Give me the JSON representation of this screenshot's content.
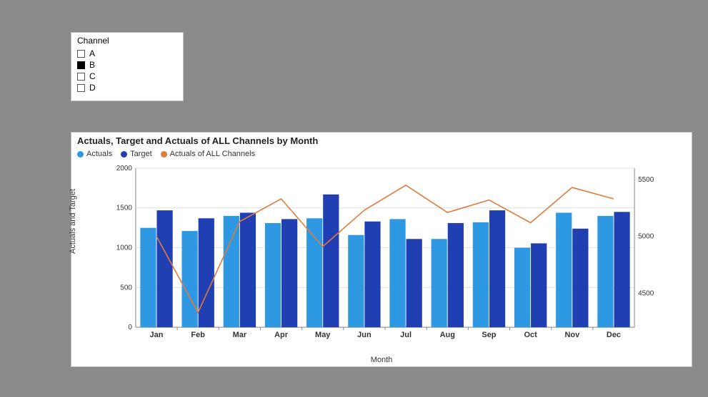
{
  "filter": {
    "title": "Channel",
    "items": [
      {
        "label": "A",
        "selected": false
      },
      {
        "label": "B",
        "selected": true
      },
      {
        "label": "C",
        "selected": false
      },
      {
        "label": "D",
        "selected": false
      }
    ]
  },
  "chart": {
    "title": "Actuals, Target and Actuals of ALL Channels by Month",
    "legend": [
      {
        "label": "Actuals",
        "color": "#2f98e3"
      },
      {
        "label": "Target",
        "color": "#1f3fb3"
      },
      {
        "label": "Actuals of ALL Channels",
        "color": "#e07b3c"
      }
    ],
    "x_label": "Month",
    "y_label": "Actuals and Target",
    "categories": [
      "Jan",
      "Feb",
      "Mar",
      "Apr",
      "May",
      "Jun",
      "Jul",
      "Aug",
      "Sep",
      "Oct",
      "Nov",
      "Dec"
    ],
    "y_left": {
      "min": 0,
      "max": 2000,
      "step": 500
    },
    "y_right": {
      "min": 4200,
      "max": 5600,
      "ticks": [
        4500,
        5000,
        5500
      ]
    },
    "series": {
      "actuals": {
        "type": "bar",
        "color": "#2f98e3",
        "values": [
          1250,
          1210,
          1400,
          1310,
          1370,
          1160,
          1360,
          1110,
          1320,
          1000,
          1440,
          1400
        ]
      },
      "target": {
        "type": "bar",
        "color": "#1f3fb3",
        "values": [
          1470,
          1370,
          1440,
          1360,
          1670,
          1330,
          1110,
          1310,
          1470,
          1055,
          1240,
          1450
        ]
      },
      "all_channels": {
        "type": "line",
        "color": "#e07b3c",
        "values": [
          5000,
          4330,
          5130,
          5330,
          4910,
          5230,
          5450,
          5210,
          5320,
          5120,
          5430,
          5330
        ]
      }
    },
    "background_color": "#ffffff",
    "grid_color": "#e0e0e0",
    "axis_color": "#888888",
    "bar": {
      "group_width": 0.78,
      "gap_ratio": 0.02
    },
    "line_width": 1.6,
    "title_fontsize": 13,
    "legend_fontsize": 11,
    "tick_fontsize": 10
  }
}
